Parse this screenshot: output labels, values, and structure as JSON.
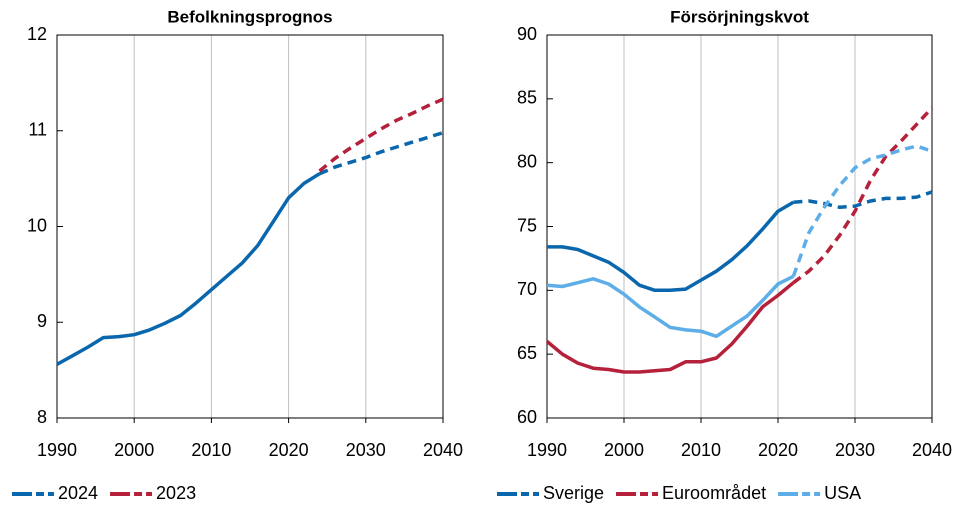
{
  "chart_data": [
    {
      "type": "line",
      "title": "Befolkningsprognos",
      "x": [
        1990,
        1992,
        1994,
        1996,
        1998,
        2000,
        2002,
        2004,
        2006,
        2008,
        2010,
        2012,
        2014,
        2016,
        2018,
        2020,
        2022,
        2024,
        2026,
        2028,
        2030,
        2032,
        2034,
        2036,
        2038,
        2040
      ],
      "forecast_from": 2024,
      "series": [
        {
          "name": "2024",
          "color": "#0a67ad",
          "values": [
            8.56,
            8.65,
            8.74,
            8.84,
            8.85,
            8.87,
            8.92,
            8.99,
            9.07,
            9.2,
            9.34,
            9.48,
            9.62,
            9.8,
            10.05,
            10.3,
            10.45,
            10.55,
            10.62,
            10.67,
            10.72,
            10.78,
            10.83,
            10.88,
            10.93,
            10.98
          ]
        },
        {
          "name": "2023",
          "color": "#b5203a",
          "values": [
            null,
            null,
            null,
            null,
            null,
            null,
            null,
            null,
            null,
            null,
            null,
            null,
            null,
            null,
            null,
            null,
            null,
            10.58,
            10.71,
            10.82,
            10.92,
            11.02,
            11.11,
            11.18,
            11.26,
            11.33
          ]
        }
      ],
      "xlim": [
        1990,
        2040
      ],
      "xticks": [
        1990,
        2000,
        2010,
        2020,
        2030,
        2040
      ],
      "ylim": [
        8,
        12
      ],
      "yticks": [
        8,
        9,
        10,
        11,
        12
      ],
      "grid": "x"
    },
    {
      "type": "line",
      "title": "Försörjningskvot",
      "x": [
        1990,
        1992,
        1994,
        1996,
        1998,
        2000,
        2002,
        2004,
        2006,
        2008,
        2010,
        2012,
        2014,
        2016,
        2018,
        2020,
        2022,
        2024,
        2026,
        2028,
        2030,
        2032,
        2034,
        2036,
        2038,
        2040
      ],
      "forecast_from": 2022,
      "series": [
        {
          "name": "Sverige",
          "color": "#0a67ad",
          "values": [
            73.4,
            73.4,
            73.2,
            72.7,
            72.2,
            71.4,
            70.4,
            70.0,
            70.0,
            70.1,
            70.8,
            71.5,
            72.4,
            73.5,
            74.8,
            76.2,
            76.9,
            77.0,
            76.8,
            76.5,
            76.6,
            77.0,
            77.2,
            77.2,
            77.3,
            77.7
          ]
        },
        {
          "name": "Euroområdet",
          "color": "#b5203a",
          "values": [
            66.0,
            65.0,
            64.3,
            63.9,
            63.8,
            63.6,
            63.6,
            63.7,
            63.8,
            64.4,
            64.4,
            64.7,
            65.8,
            67.2,
            68.7,
            69.6,
            70.6,
            71.5,
            72.7,
            74.3,
            76.2,
            78.6,
            80.5,
            81.7,
            83.0,
            84.3
          ]
        },
        {
          "name": "USA",
          "color": "#5dade8",
          "values": [
            70.4,
            70.3,
            70.6,
            70.9,
            70.5,
            69.7,
            68.7,
            67.9,
            67.1,
            66.9,
            66.8,
            66.4,
            67.2,
            68.0,
            69.2,
            70.5,
            71.1,
            74.5,
            76.5,
            78.2,
            79.6,
            80.3,
            80.6,
            81.0,
            81.3,
            80.9
          ]
        }
      ],
      "xlim": [
        1990,
        2040
      ],
      "xticks": [
        1990,
        2000,
        2010,
        2020,
        2030,
        2040
      ],
      "ylim": [
        60,
        90
      ],
      "yticks": [
        60,
        65,
        70,
        75,
        80,
        85,
        90
      ],
      "grid": "x"
    }
  ]
}
